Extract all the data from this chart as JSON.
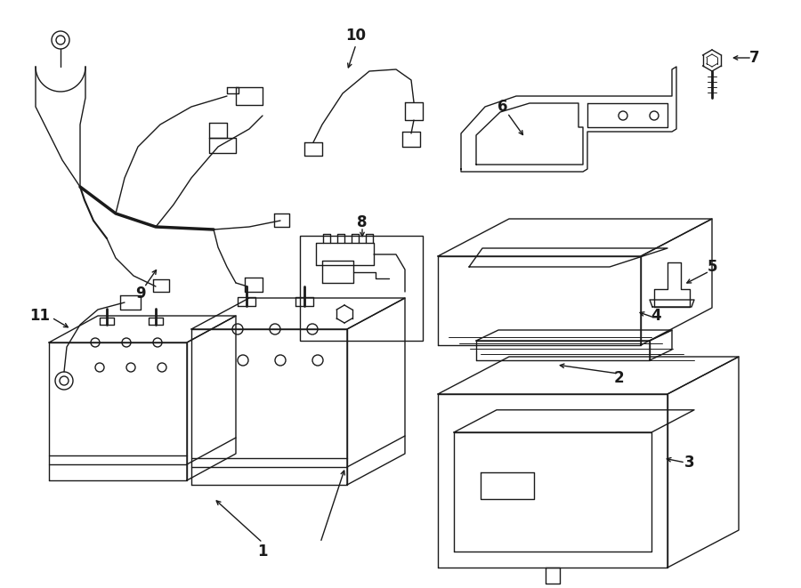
{
  "background_color": "#ffffff",
  "line_color": "#1a1a1a",
  "lw": 1.0,
  "fig_w": 9.0,
  "fig_h": 6.61,
  "dpi": 100,
  "xlim": [
    0,
    900
  ],
  "ylim": [
    0,
    661
  ]
}
